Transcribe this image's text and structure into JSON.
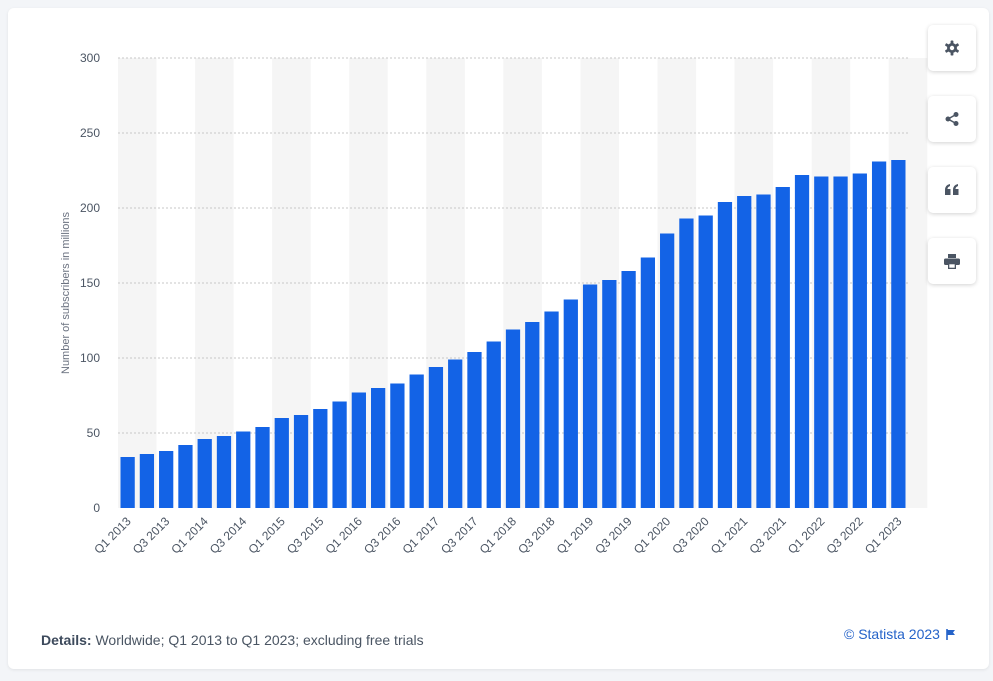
{
  "chart_data": {
    "type": "bar",
    "ylabel": "Number of subscribers in millions",
    "xlabel": "",
    "ylim": [
      0,
      300
    ],
    "yticks": [
      0,
      50,
      100,
      150,
      200,
      250,
      300
    ],
    "grid": true,
    "bar_color": "#1363e6",
    "categories": [
      "Q1 2013",
      "Q2 2013",
      "Q3 2013",
      "Q4 2013",
      "Q1 2014",
      "Q2 2014",
      "Q3 2014",
      "Q4 2014",
      "Q1 2015",
      "Q2 2015",
      "Q3 2015",
      "Q4 2015",
      "Q1 2016",
      "Q2 2016",
      "Q3 2016",
      "Q4 2016",
      "Q1 2017",
      "Q2 2017",
      "Q3 2017",
      "Q4 2017",
      "Q1 2018",
      "Q2 2018",
      "Q3 2018",
      "Q4 2018",
      "Q1 2019",
      "Q2 2019",
      "Q3 2019",
      "Q4 2019",
      "Q1 2020",
      "Q2 2020",
      "Q3 2020",
      "Q4 2020",
      "Q1 2021",
      "Q2 2021",
      "Q3 2021",
      "Q4 2021",
      "Q1 2022",
      "Q2 2022",
      "Q3 2022",
      "Q4 2022",
      "Q1 2023"
    ],
    "values": [
      34,
      36,
      38,
      42,
      46,
      48,
      51,
      54,
      60,
      62,
      66,
      71,
      77,
      80,
      83,
      89,
      94,
      99,
      104,
      111,
      119,
      124,
      131,
      139,
      149,
      152,
      158,
      167,
      183,
      193,
      195,
      204,
      208,
      209,
      214,
      222,
      221,
      221,
      223,
      231,
      232
    ],
    "visible_tick_labels": [
      "Q1 2013",
      "Q3 2013",
      "Q1 2014",
      "Q3 2014",
      "Q1 2015",
      "Q3 2015",
      "Q1 2016",
      "Q3 2016",
      "Q1 2017",
      "Q3 2017",
      "Q1 2018",
      "Q3 2018",
      "Q1 2019",
      "Q3 2019",
      "Q1 2020",
      "Q3 2020",
      "Q1 2021",
      "Q3 2021",
      "Q1 2022",
      "Q3 2022",
      "Q1 2023"
    ]
  },
  "footer": {
    "details_label": "Details:",
    "details_text": "Worldwide; Q1 2013 to Q1 2023; excluding free trials",
    "credit": "© Statista 2023"
  },
  "toolbar": {
    "buttons": [
      "gear-icon",
      "share-icon",
      "quote-icon",
      "print-icon"
    ]
  },
  "colors": {
    "accent": "#2563c9",
    "bar": "#1363e6",
    "band": "#f5f5f5"
  }
}
